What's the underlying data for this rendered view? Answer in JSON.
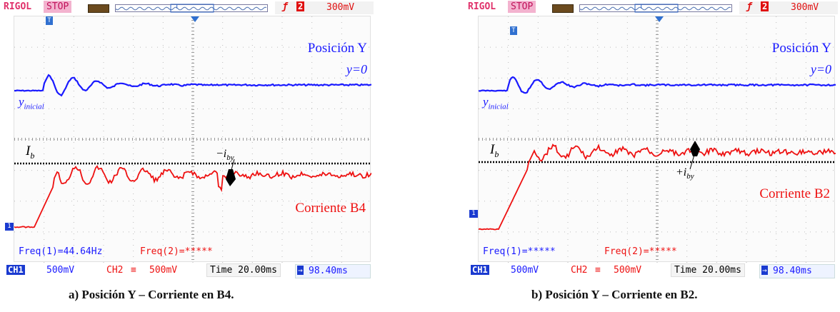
{
  "panels": [
    {
      "brand": "RIGOL",
      "run_state": "STOP",
      "trigger_value": "300mV",
      "trigger_source": "2",
      "position_label": "Posición Y",
      "y_zero_label": "y=0",
      "y_initial_main": "y",
      "y_initial_sub": "inicial",
      "ib_main": "I",
      "ib_sub": "b",
      "iby_label": "−i",
      "iby_sub": "by",
      "current_label": "Corriente B4",
      "freq1": "Freq(1)=44.64Hz",
      "freq2": "Freq(2)=*****",
      "ch1_label": "CH1",
      "ch1_scale": "500mV",
      "ch2_label": "CH2",
      "ch2_scale": "500mV",
      "time_label": "Time 20.00ms",
      "offset_label": "98.40ms",
      "caption": "a) Posición Y – Corriente en B4."
    },
    {
      "brand": "RIGOL",
      "run_state": "STOP",
      "trigger_value": "300mV",
      "trigger_source": "2",
      "position_label": "Posición Y",
      "y_zero_label": "y=0",
      "y_initial_main": "y",
      "y_initial_sub": "inicial",
      "ib_main": "I",
      "ib_sub": "b",
      "iby_label": "+i",
      "iby_sub": "by",
      "current_label": "Corriente B2",
      "freq1": "Freq(1)=*****",
      "freq2": "Freq(2)=*****",
      "ch1_label": "CH1",
      "ch1_scale": "500mV",
      "ch2_label": "CH2",
      "ch2_scale": "500mV",
      "time_label": "Time 20.00ms",
      "offset_label": "98.40ms",
      "caption": "b) Posición Y – Corriente en B2."
    }
  ],
  "colors": {
    "ch1": "#1a1aff",
    "ch2": "#ee1111",
    "brand": "#e0306a",
    "grid": "#bdbdbd",
    "reference": "#000000"
  },
  "icons": [
    "battery-icon",
    "trigger-edge-icon",
    "trigger-marker-icon",
    "ch1-marker-icon",
    "offset-arrow-icon"
  ]
}
